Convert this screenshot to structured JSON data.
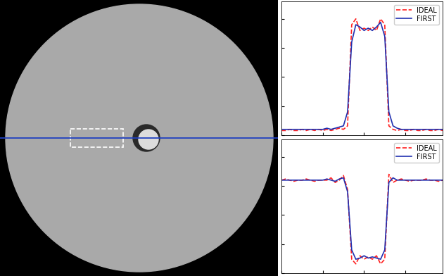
{
  "chart_data": [
    {
      "type": "line",
      "legend": "upper right",
      "tick_labels": false,
      "x": [
        0,
        1,
        2,
        3,
        4,
        5,
        6,
        7,
        8,
        9,
        10,
        11,
        12,
        13,
        14,
        15,
        16,
        17,
        18,
        19,
        20,
        21,
        22,
        23,
        24,
        25,
        26,
        27,
        28,
        29,
        30,
        31,
        32,
        33,
        34,
        35,
        36,
        37,
        38,
        39
      ],
      "xlim": [
        0,
        39
      ],
      "ylim": [
        0,
        1.15
      ],
      "xticks": [
        0,
        10,
        20,
        30
      ],
      "yticks": [
        0,
        0.25,
        0.5,
        0.75,
        1
      ],
      "series": [
        {
          "name": "IDEAL",
          "color": "#ff2020",
          "line_style": "dashed",
          "values": [
            0.04,
            0.04,
            0.05,
            0.04,
            0.04,
            0.05,
            0.04,
            0.05,
            0.04,
            0.05,
            0.04,
            0.05,
            0.04,
            0.05,
            0.06,
            0.05,
            0.08,
            0.95,
            1.0,
            0.9,
            0.92,
            0.9,
            0.93,
            0.9,
            1.0,
            0.95,
            0.08,
            0.05,
            0.04,
            0.05,
            0.04,
            0.04,
            0.05,
            0.04,
            0.04,
            0.05,
            0.04,
            0.04,
            0.05,
            0.04
          ]
        },
        {
          "name": "FIRST",
          "color": "#2030b0",
          "line_style": "solid",
          "values": [
            0.05,
            0.05,
            0.05,
            0.05,
            0.05,
            0.05,
            0.05,
            0.05,
            0.05,
            0.05,
            0.05,
            0.06,
            0.05,
            0.06,
            0.07,
            0.08,
            0.2,
            0.8,
            0.95,
            0.93,
            0.9,
            0.92,
            0.9,
            0.93,
            0.97,
            0.85,
            0.2,
            0.08,
            0.06,
            0.05,
            0.05,
            0.05,
            0.05,
            0.05,
            0.05,
            0.05,
            0.05,
            0.05,
            0.05,
            0.05
          ]
        }
      ]
    },
    {
      "type": "line",
      "legend": "upper right",
      "tick_labels": false,
      "x": [
        0,
        1,
        2,
        3,
        4,
        5,
        6,
        7,
        8,
        9,
        10,
        11,
        12,
        13,
        14,
        15,
        16,
        17,
        18,
        19,
        20,
        21,
        22,
        23,
        24,
        25,
        26,
        27,
        28,
        29,
        30,
        31,
        32,
        33,
        34,
        35,
        36,
        37,
        38,
        39
      ],
      "xlim": [
        0,
        39
      ],
      "ylim": [
        0,
        1.15
      ],
      "xticks": [
        0,
        10,
        20,
        30
      ],
      "yticks": [
        0,
        0.25,
        0.5,
        0.75,
        1
      ],
      "series": [
        {
          "name": "IDEAL",
          "color": "#ff2020",
          "line_style": "dashed",
          "values": [
            0.8,
            0.81,
            0.8,
            0.79,
            0.8,
            0.8,
            0.81,
            0.8,
            0.79,
            0.8,
            0.8,
            0.8,
            0.82,
            0.78,
            0.8,
            0.84,
            0.72,
            0.12,
            0.08,
            0.15,
            0.12,
            0.14,
            0.12,
            0.15,
            0.08,
            0.12,
            0.85,
            0.78,
            0.8,
            0.81,
            0.8,
            0.79,
            0.8,
            0.8,
            0.8,
            0.81,
            0.8,
            0.8,
            0.79,
            0.8
          ]
        },
        {
          "name": "FIRST",
          "color": "#2030b0",
          "line_style": "solid",
          "values": [
            0.8,
            0.8,
            0.8,
            0.8,
            0.8,
            0.8,
            0.8,
            0.8,
            0.8,
            0.8,
            0.8,
            0.81,
            0.8,
            0.79,
            0.81,
            0.82,
            0.7,
            0.2,
            0.12,
            0.13,
            0.15,
            0.13,
            0.14,
            0.13,
            0.12,
            0.2,
            0.78,
            0.82,
            0.8,
            0.8,
            0.8,
            0.8,
            0.8,
            0.8,
            0.8,
            0.8,
            0.8,
            0.8,
            0.8,
            0.8
          ]
        }
      ]
    }
  ]
}
